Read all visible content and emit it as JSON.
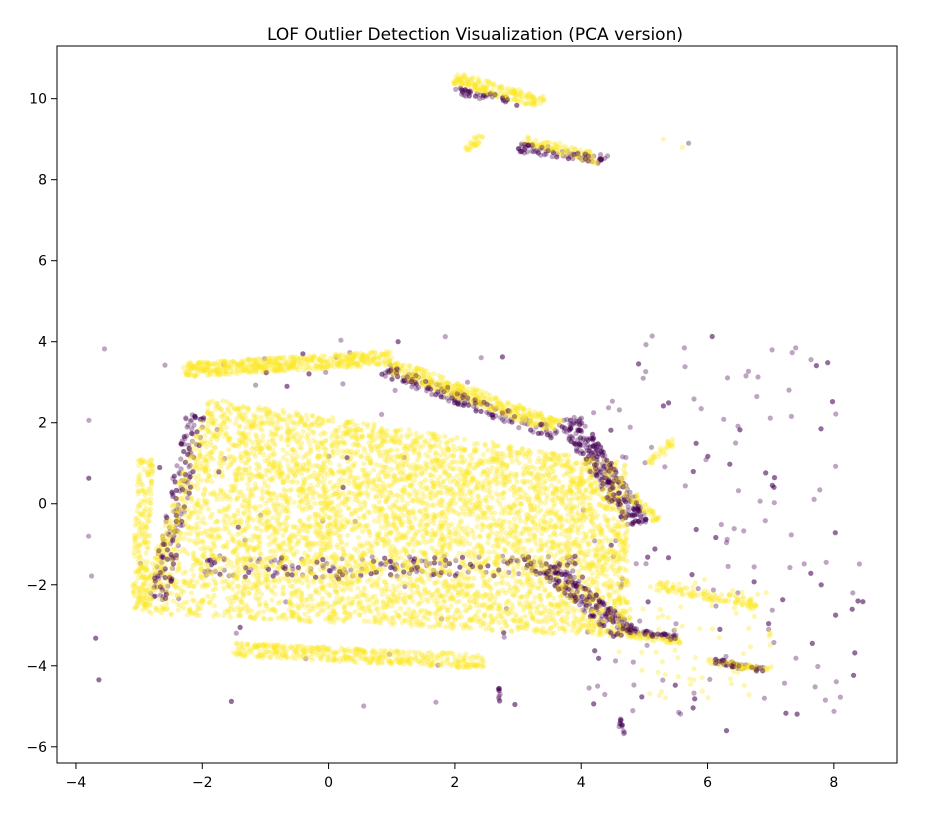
{
  "chart_data": {
    "type": "scatter",
    "title": "LOF Outlier Detection Visualization (PCA version)",
    "xlabel": "",
    "ylabel": "",
    "xlim": [
      -4.3,
      9.0
    ],
    "ylim": [
      -6.4,
      11.3
    ],
    "x_ticks": [
      -4,
      -2,
      0,
      2,
      4,
      6,
      8
    ],
    "y_ticks": [
      -6,
      -4,
      -2,
      0,
      2,
      4,
      6,
      8,
      10
    ],
    "x_tick_labels": [
      "−4",
      "−2",
      "0",
      "2",
      "4",
      "6",
      "8"
    ],
    "y_tick_labels": [
      "−6",
      "−4",
      "−2",
      "0",
      "2",
      "4",
      "6",
      "8",
      "10"
    ],
    "grid": false,
    "legend": "none",
    "colors": {
      "inlier": "#fde725",
      "outlier": "#440154"
    },
    "point_alpha": 0.35,
    "clusters": [
      {
        "shape": "parallelogram",
        "label": "inlier",
        "corners": [
          [
            -3.1,
            -2.7
          ],
          [
            -1.9,
            2.6
          ],
          [
            4.7,
            1.0
          ],
          [
            4.8,
            -3.3
          ]
        ],
        "density": 5200
      },
      {
        "shape": "band",
        "label": "inlier",
        "from": [
          -2.3,
          3.3
        ],
        "to": [
          1.0,
          3.6
        ],
        "width": 0.35,
        "density": 500
      },
      {
        "shape": "band",
        "label": "inlier",
        "from": [
          1.0,
          3.4
        ],
        "to": [
          3.6,
          1.9
        ],
        "width": 0.35,
        "density": 380
      },
      {
        "shape": "band",
        "label": "inlier",
        "from": [
          -3.0,
          -2.6
        ],
        "to": [
          -2.9,
          1.1
        ],
        "width": 0.25,
        "density": 200
      },
      {
        "shape": "band",
        "label": "inlier",
        "from": [
          -1.5,
          -3.6
        ],
        "to": [
          2.5,
          -3.9
        ],
        "width": 0.35,
        "density": 400
      },
      {
        "shape": "band",
        "label": "inlier",
        "from": [
          2.0,
          10.5
        ],
        "to": [
          3.4,
          9.9
        ],
        "width": 0.3,
        "density": 180
      },
      {
        "shape": "band",
        "label": "inlier",
        "from": [
          3.1,
          9.0
        ],
        "to": [
          4.3,
          8.5
        ],
        "width": 0.25,
        "density": 90
      },
      {
        "shape": "band",
        "label": "inlier",
        "from": [
          2.2,
          8.7
        ],
        "to": [
          2.4,
          9.1
        ],
        "width": 0.15,
        "density": 25
      },
      {
        "shape": "band",
        "label": "inlier",
        "from": [
          5.2,
          -2.0
        ],
        "to": [
          6.8,
          -2.5
        ],
        "width": 0.25,
        "density": 110
      },
      {
        "shape": "band",
        "label": "inlier",
        "from": [
          4.6,
          -3.2
        ],
        "to": [
          5.6,
          -3.4
        ],
        "width": 0.15,
        "density": 60
      },
      {
        "shape": "band",
        "label": "inlier",
        "from": [
          6.0,
          -3.9
        ],
        "to": [
          7.0,
          -4.1
        ],
        "width": 0.15,
        "density": 60
      },
      {
        "shape": "band",
        "label": "inlier",
        "from": [
          4.8,
          0.2
        ],
        "to": [
          5.2,
          -0.4
        ],
        "width": 0.2,
        "density": 40
      },
      {
        "shape": "band",
        "label": "inlier",
        "from": [
          5.1,
          1.0
        ],
        "to": [
          5.5,
          1.6
        ],
        "width": 0.15,
        "density": 30
      },
      {
        "shape": "band",
        "label": "outlier",
        "from": [
          3.8,
          2.1
        ],
        "to": [
          4.9,
          -0.5
        ],
        "width": 0.4,
        "density": 260
      },
      {
        "shape": "band",
        "label": "outlier",
        "from": [
          -2.7,
          -2.4
        ],
        "to": [
          -2.1,
          2.2
        ],
        "width": 0.3,
        "density": 160
      },
      {
        "shape": "band",
        "label": "outlier",
        "from": [
          0.9,
          3.3
        ],
        "to": [
          3.6,
          1.7
        ],
        "width": 0.3,
        "density": 160
      },
      {
        "shape": "band",
        "label": "outlier",
        "from": [
          3.5,
          -1.6
        ],
        "to": [
          4.7,
          -3.2
        ],
        "width": 0.4,
        "density": 200
      },
      {
        "shape": "band",
        "label": "outlier",
        "from": [
          -2.0,
          -1.6
        ],
        "to": [
          4.0,
          -1.5
        ],
        "width": 0.5,
        "density": 180
      },
      {
        "shape": "band",
        "label": "outlier",
        "from": [
          3.0,
          8.8
        ],
        "to": [
          4.4,
          8.5
        ],
        "width": 0.25,
        "density": 70
      },
      {
        "shape": "band",
        "label": "outlier",
        "from": [
          2.0,
          10.2
        ],
        "to": [
          3.0,
          9.9
        ],
        "width": 0.2,
        "density": 40
      },
      {
        "shape": "band",
        "label": "outlier",
        "from": [
          4.6,
          -3.1
        ],
        "to": [
          5.5,
          -3.3
        ],
        "width": 0.15,
        "density": 50
      },
      {
        "shape": "band",
        "label": "outlier",
        "from": [
          6.1,
          -3.9
        ],
        "to": [
          6.9,
          -4.1
        ],
        "width": 0.15,
        "density": 45
      },
      {
        "shape": "band",
        "label": "outlier",
        "from": [
          4.6,
          -5.3
        ],
        "to": [
          4.7,
          -5.7
        ],
        "width": 0.05,
        "density": 10
      },
      {
        "shape": "band",
        "label": "outlier",
        "from": [
          2.7,
          -4.5
        ],
        "to": [
          2.7,
          -4.9
        ],
        "width": 0.05,
        "density": 8
      },
      {
        "shape": "scatter",
        "label": "outlier",
        "region": [
          [
            4.0,
            -5.2
          ],
          [
            8.5,
            4.2
          ]
        ],
        "density": 150
      },
      {
        "shape": "scatter",
        "label": "outlier",
        "region": [
          [
            -3.8,
            -5.0
          ],
          [
            3.0,
            4.2
          ]
        ],
        "density": 60
      },
      {
        "shape": "scatter",
        "label": "inlier",
        "region": [
          [
            4.5,
            -4.8
          ],
          [
            7.0,
            -1.8
          ]
        ],
        "density": 70
      }
    ],
    "isolated_points": [
      {
        "x": -3.8,
        "y": -0.8,
        "label": "outlier"
      },
      {
        "x": 8.3,
        "y": -2.2,
        "label": "outlier"
      },
      {
        "x": 7.8,
        "y": -2.0,
        "label": "outlier"
      },
      {
        "x": 5.6,
        "y": 8.8,
        "label": "inlier"
      },
      {
        "x": 5.7,
        "y": 8.9,
        "label": "outlier"
      },
      {
        "x": 4.6,
        "y": -5.5,
        "label": "outlier"
      },
      {
        "x": 6.3,
        "y": -5.6,
        "label": "outlier"
      },
      {
        "x": 6.9,
        "y": -4.8,
        "label": "outlier"
      },
      {
        "x": 1.7,
        "y": -4.9,
        "label": "outlier"
      },
      {
        "x": 1.1,
        "y": 4.0,
        "label": "outlier"
      },
      {
        "x": 2.2,
        "y": 3.0,
        "label": "outlier"
      },
      {
        "x": 5.3,
        "y": 9.0,
        "label": "inlier"
      }
    ]
  }
}
